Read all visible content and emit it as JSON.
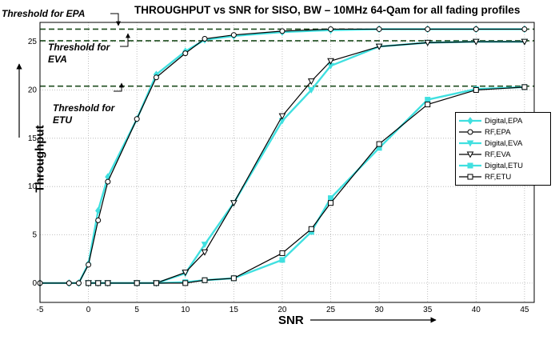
{
  "chart_data": {
    "type": "line",
    "title": "THROUGHPUT vs SNR for SISO, BW – 10MHz 64-Qam for all fading profiles",
    "xlabel": "SNR",
    "ylabel": "Throughput",
    "xlim": [
      -5,
      46
    ],
    "ylim": [
      -2,
      27
    ],
    "xticks": [
      -5,
      0,
      5,
      10,
      15,
      20,
      25,
      30,
      35,
      40,
      45
    ],
    "yticks": [
      0,
      5,
      10,
      15,
      20,
      25
    ],
    "grid": true,
    "legend_position": "right",
    "thresholds": [
      {
        "label": "Threshold for EPA",
        "y": 26.3
      },
      {
        "label": "Threshold for EVA",
        "y": 25.1
      },
      {
        "label": "Threshold for ETU",
        "y": 20.4
      }
    ],
    "series": [
      {
        "name": "Digital,EPA",
        "color": "#40e0e0",
        "marker": "diamond",
        "x": [
          -5,
          -2,
          -1,
          0,
          1,
          2,
          5,
          7,
          10,
          12,
          15,
          20,
          25,
          30,
          35,
          40,
          45
        ],
        "y": [
          0,
          0,
          0,
          2,
          7.5,
          11,
          17,
          21.6,
          24,
          25.2,
          25.6,
          26,
          26.2,
          26.3,
          26.3,
          26.3,
          26.3
        ]
      },
      {
        "name": "RF,EPA",
        "color": "#000000",
        "marker": "circle",
        "x": [
          -5,
          -2,
          -1,
          0,
          1,
          2,
          5,
          7,
          10,
          12,
          15,
          20,
          25,
          30,
          35,
          40,
          45
        ],
        "y": [
          0,
          0,
          0,
          1.9,
          6.5,
          10.5,
          17,
          21.3,
          23.8,
          25.3,
          25.7,
          26.1,
          26.3,
          26.3,
          26.3,
          26.3,
          26.3
        ]
      },
      {
        "name": "Digital,EVA",
        "color": "#40e0e0",
        "marker": "triangle-down",
        "x": [
          0,
          1,
          2,
          5,
          7,
          10,
          12,
          15,
          20,
          23,
          25,
          30,
          35,
          40,
          45
        ],
        "y": [
          0,
          0,
          0,
          0,
          0,
          1,
          4,
          8.3,
          16.8,
          20,
          22.5,
          24.5,
          24.9,
          25,
          25
        ]
      },
      {
        "name": "RF,EVA",
        "color": "#000000",
        "marker": "triangle-down",
        "x": [
          0,
          1,
          2,
          5,
          7,
          10,
          12,
          15,
          20,
          23,
          25,
          30,
          35,
          40,
          45
        ],
        "y": [
          0,
          0,
          0,
          0,
          0,
          1.1,
          3.2,
          8.3,
          17.3,
          20.9,
          23,
          24.5,
          24.9,
          25,
          25
        ]
      },
      {
        "name": "Digital,ETU",
        "color": "#40e0e0",
        "marker": "square",
        "x": [
          0,
          1,
          2,
          5,
          7,
          10,
          12,
          15,
          20,
          23,
          25,
          30,
          35,
          40,
          45
        ],
        "y": [
          0,
          0,
          0,
          0,
          0,
          0.1,
          0.3,
          0.5,
          2.4,
          5.3,
          8.8,
          14,
          19,
          20.1,
          20.3
        ]
      },
      {
        "name": "RF,ETU",
        "color": "#000000",
        "marker": "square",
        "x": [
          0,
          1,
          2,
          5,
          7,
          10,
          12,
          15,
          20,
          23,
          25,
          30,
          35,
          40,
          45
        ],
        "y": [
          0,
          0,
          0,
          0,
          0,
          0,
          0.3,
          0.5,
          3.1,
          5.6,
          8.3,
          14.4,
          18.5,
          20,
          20.3
        ]
      }
    ]
  }
}
